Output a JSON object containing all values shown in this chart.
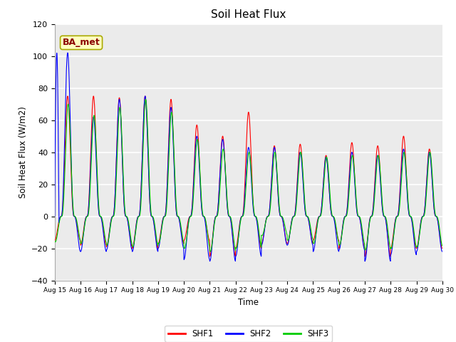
{
  "title": "Soil Heat Flux",
  "ylabel": "Soil Heat Flux (W/m2)",
  "xlabel": "Time",
  "ylim": [
    -40,
    120
  ],
  "yticks": [
    -40,
    -20,
    0,
    20,
    40,
    60,
    80,
    100,
    120
  ],
  "colors": {
    "SHF1": "#FF0000",
    "SHF2": "#0000FF",
    "SHF3": "#00CC00"
  },
  "legend_label": "BA_met",
  "legend_text_color": "#8B0000",
  "legend_box_facecolor": "#FFFFC0",
  "legend_box_edgecolor": "#AAAA00",
  "fig_background": "#FFFFFF",
  "plot_background": "#EBEBEB",
  "grid_color": "#FFFFFF",
  "n_days": 15,
  "start_day": 15,
  "points_per_day": 144,
  "shf1_peaks": [
    75,
    75,
    74,
    75,
    73,
    57,
    50,
    65,
    44,
    45,
    38,
    46,
    44,
    50,
    42
  ],
  "shf1_troughs": [
    -15,
    -18,
    -19,
    -20,
    -17,
    -15,
    -25,
    -20,
    -17,
    -17,
    -15,
    -20,
    -25,
    -20,
    -20
  ],
  "shf2_peaks": [
    102,
    62,
    73,
    75,
    68,
    50,
    48,
    43,
    43,
    40,
    37,
    40,
    38,
    42,
    40
  ],
  "shf2_troughs": [
    -22,
    -22,
    -21,
    -22,
    -20,
    -27,
    -28,
    -25,
    -18,
    -18,
    -22,
    -21,
    -28,
    -24,
    -22
  ],
  "shf3_peaks": [
    70,
    63,
    68,
    73,
    65,
    48,
    42,
    40,
    40,
    40,
    37,
    38,
    38,
    40,
    40
  ],
  "shf3_troughs": [
    -16,
    -17,
    -18,
    -19,
    -17,
    -20,
    -22,
    -20,
    -12,
    -15,
    -17,
    -18,
    -21,
    -20,
    -19
  ]
}
